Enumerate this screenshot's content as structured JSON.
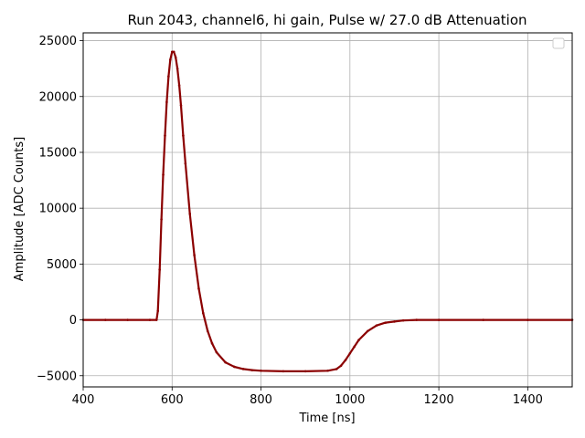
{
  "chart_data": {
    "type": "scatter",
    "title": "Run 2043, channel6, hi gain, Pulse w/ 27.0 dB Attenuation",
    "xlabel": "Time [ns]",
    "ylabel": "Amplitude [ADC Counts]",
    "xlim": [
      400,
      1500
    ],
    "ylim": [
      -6000,
      25700
    ],
    "xticks": [
      400,
      600,
      800,
      1000,
      1200,
      1400
    ],
    "yticks": [
      -5000,
      0,
      5000,
      10000,
      15000,
      20000,
      25000
    ],
    "ytick_labels": [
      "−5000",
      "0",
      "5000",
      "10000",
      "15000",
      "20000",
      "25000"
    ],
    "grid": true,
    "legend": {
      "placement": "top-right",
      "entries": []
    },
    "series": [
      {
        "color": "#8b0000",
        "marker": "dot",
        "x": [
          400,
          450,
          500,
          550,
          565,
          568,
          572,
          576,
          580,
          584,
          588,
          592,
          596,
          600,
          604,
          608,
          612,
          616,
          620,
          625,
          630,
          640,
          650,
          660,
          670,
          680,
          690,
          700,
          720,
          740,
          760,
          780,
          800,
          850,
          900,
          950,
          970,
          980,
          990,
          1000,
          1010,
          1020,
          1040,
          1060,
          1080,
          1100,
          1120,
          1150,
          1200,
          1300,
          1400,
          1500
        ],
        "y": [
          0,
          0,
          0,
          0,
          0,
          800,
          4500,
          9000,
          13000,
          16500,
          19500,
          21800,
          23300,
          24000,
          24000,
          23500,
          22500,
          21000,
          19200,
          16500,
          14000,
          9500,
          5800,
          2800,
          600,
          -1000,
          -2100,
          -2900,
          -3800,
          -4200,
          -4400,
          -4500,
          -4550,
          -4600,
          -4600,
          -4550,
          -4400,
          -4100,
          -3600,
          -3000,
          -2400,
          -1800,
          -1000,
          -500,
          -250,
          -150,
          -50,
          0,
          0,
          0,
          0,
          0
        ]
      }
    ]
  }
}
